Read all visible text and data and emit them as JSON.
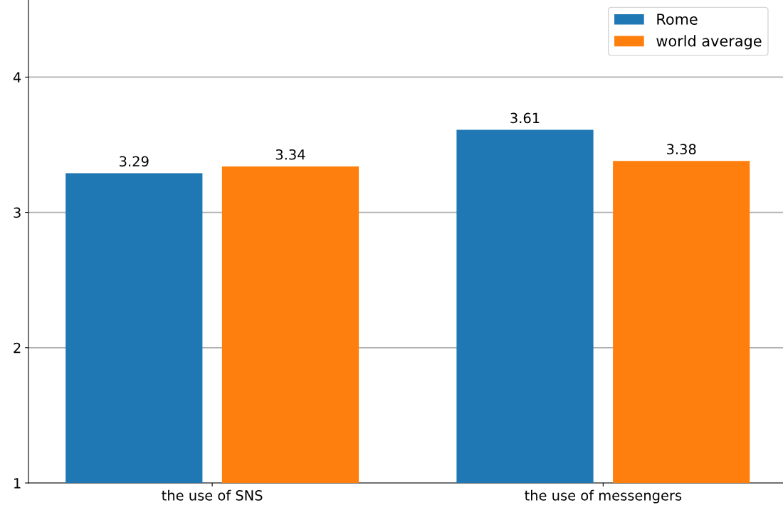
{
  "chart_data": {
    "type": "bar",
    "categories": [
      "the use of SNS",
      "the use of messengers"
    ],
    "series": [
      {
        "name": "Rome",
        "color": "#1f77b4",
        "values": [
          3.29,
          3.61
        ]
      },
      {
        "name": "world average",
        "color": "#ff7f0e",
        "values": [
          3.34,
          3.38
        ]
      }
    ],
    "ylim": [
      1,
      4.57
    ],
    "yticks": [
      1,
      2,
      3,
      4
    ],
    "grid": "y",
    "legend": "top right",
    "data_labels": true
  }
}
